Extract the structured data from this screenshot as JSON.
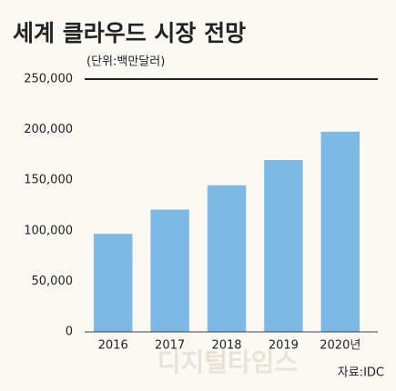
{
  "chart_data": {
    "type": "bar",
    "title": "세계 클라우드 시장 전망",
    "subtitle": "(단위:백만달러)",
    "categories": [
      "2016",
      "2017",
      "2018",
      "2019",
      "2020년"
    ],
    "values": [
      97000,
      121000,
      145000,
      170000,
      198000
    ],
    "color": "#7db9e4",
    "ylim": [
      0,
      250000
    ],
    "yticks": [
      0,
      {
        "value": 50000,
        "label": "50,000"
      },
      {
        "value": 100000,
        "label": "100,000"
      },
      {
        "value": 150000,
        "label": "150,000"
      },
      {
        "value": 200000,
        "label": "200,000"
      },
      {
        "value": 250000,
        "label": "250,000"
      }
    ],
    "source": "자료:IDC",
    "watermark": "디지털타임스"
  }
}
